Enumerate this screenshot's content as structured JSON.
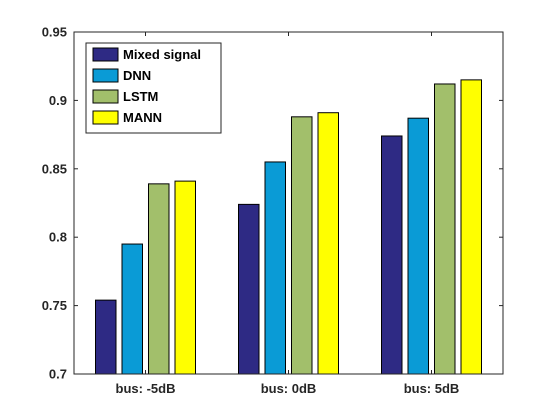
{
  "chart_data": {
    "type": "bar",
    "categories": [
      "bus: -5dB",
      "bus: 0dB",
      "bus: 5dB"
    ],
    "series": [
      {
        "name": "Mixed signal",
        "color": "#2e2a84",
        "values": [
          0.754,
          0.824,
          0.874
        ]
      },
      {
        "name": "DNN",
        "color": "#0a9bd6",
        "values": [
          0.795,
          0.855,
          0.887
        ]
      },
      {
        "name": "LSTM",
        "color": "#a2bf6b",
        "values": [
          0.839,
          0.888,
          0.912
        ]
      },
      {
        "name": "MANN",
        "color": "#ffff00",
        "values": [
          0.841,
          0.891,
          0.915
        ]
      }
    ],
    "title": "",
    "xlabel": "",
    "ylabel": "",
    "ylim": [
      0.7,
      0.95
    ],
    "yticks": [
      "0.7",
      "0.75",
      "0.8",
      "0.85",
      "0.9",
      "0.95"
    ],
    "grid": false,
    "legend_position": "top-left"
  }
}
